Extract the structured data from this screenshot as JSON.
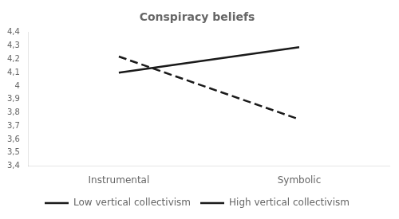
{
  "chart_data": {
    "type": "line",
    "title": "Conspiracy beliefs",
    "categories": [
      "Instrumental",
      "Symbolic"
    ],
    "series": [
      {
        "name": "Low vertical collectivism",
        "color": "#1a1a1a",
        "line_style": "dashed",
        "values": [
          4.22,
          3.75
        ]
      },
      {
        "name": "High vertical collectivism",
        "color": "#1a1a1a",
        "line_style": "solid",
        "values": [
          4.1,
          4.29
        ]
      }
    ],
    "ylim": [
      3.4,
      4.4
    ],
    "yticks": [
      {
        "value": 3.4,
        "label": "3,4"
      },
      {
        "value": 3.5,
        "label": "3,5"
      },
      {
        "value": 3.6,
        "label": "3,6"
      },
      {
        "value": 3.7,
        "label": "3,7"
      },
      {
        "value": 3.8,
        "label": "3,8"
      },
      {
        "value": 3.9,
        "label": "3,9"
      },
      4,
      {
        "value": 4.1,
        "label": "4,1"
      },
      {
        "value": 4.2,
        "label": "4,2"
      },
      {
        "value": 4.3,
        "label": "4,3"
      },
      {
        "value": 4.4,
        "label": "4,4"
      }
    ],
    "grid": false,
    "legend": "bottom"
  }
}
